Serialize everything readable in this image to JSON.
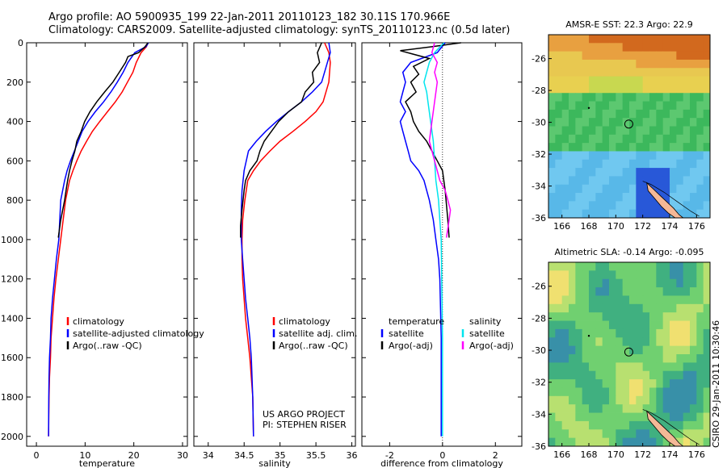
{
  "header": {
    "line1": "Argo profile: AO 5900935_199 22-Jan-2011 20110123_182 30.11S 170.966E",
    "line2": "Climatology: CARS2009. Satellite-adjusted climatology: synTS_20110123.nc (0.5d later)"
  },
  "stamp": "CSIRO 29-Jan-2011 10:30:46",
  "colors": {
    "climatology": "#ff0000",
    "satellite": "#0000ff",
    "argo": "#000000",
    "salinity_sat": "#00e5ee",
    "salinity_argo": "#ff00ff"
  },
  "chart_data": [
    {
      "type": "line",
      "id": "temperature",
      "xlabel": "temperature",
      "ylabel": "",
      "xlim": [
        -2,
        31
      ],
      "ylim": [
        2050,
        0
      ],
      "xticks": [
        0,
        10,
        20,
        30
      ],
      "yticks": [
        0,
        200,
        400,
        600,
        800,
        1000,
        1200,
        1400,
        1600,
        1800,
        2000
      ],
      "legend": {
        "position": "lower-right",
        "entries": [
          "climatology",
          "satellite-adjusted climatology",
          "Argo(..raw -QC)"
        ]
      },
      "series": [
        {
          "name": "climatology",
          "color": "red",
          "x": [
            22.9,
            22.6,
            21.5,
            20.5,
            19.8,
            18.7,
            17.6,
            16.2,
            14.6,
            13.0,
            11.5,
            10.3,
            9.2,
            8.3,
            7.5,
            6.8,
            6.0,
            5.0,
            4.5,
            4.0,
            3.6,
            3.3,
            3.0,
            2.9,
            2.7,
            2.6,
            2.55,
            2.5
          ],
          "y": [
            0,
            20,
            50,
            100,
            150,
            200,
            250,
            300,
            350,
            400,
            450,
            500,
            550,
            600,
            650,
            700,
            800,
            1000,
            1100,
            1200,
            1300,
            1400,
            1500,
            1600,
            1700,
            1800,
            1900,
            2000
          ]
        },
        {
          "name": "satellite-adjusted climatology",
          "color": "blue",
          "x": [
            23.0,
            22.5,
            20.2,
            18.8,
            17.8,
            16.6,
            15.3,
            13.8,
            12.1,
            10.6,
            9.4,
            8.6,
            7.8,
            7.0,
            6.3,
            5.8,
            5.0,
            4.6,
            4.1,
            3.7,
            3.3,
            3.0,
            2.9,
            2.7,
            2.6,
            2.55,
            2.5
          ],
          "y": [
            0,
            20,
            50,
            100,
            150,
            200,
            250,
            300,
            350,
            400,
            450,
            500,
            550,
            600,
            650,
            700,
            800,
            1000,
            1100,
            1200,
            1300,
            1400,
            1500,
            1600,
            1700,
            1800,
            2000
          ]
        },
        {
          "name": "Argo(..raw -QC)",
          "color": "black",
          "x": [
            22.9,
            22.3,
            21.0,
            18.8,
            18.3,
            17.0,
            15.7,
            14.0,
            12.4,
            11.0,
            9.9,
            9.2,
            8.3,
            7.9,
            7.3,
            6.8,
            6.4,
            6.1,
            5.8,
            5.4,
            5.0,
            4.5
          ],
          "y": [
            0,
            20,
            50,
            70,
            100,
            150,
            200,
            250,
            300,
            350,
            400,
            450,
            500,
            550,
            600,
            650,
            700,
            750,
            800,
            850,
            900,
            990
          ]
        }
      ]
    },
    {
      "type": "line",
      "id": "salinity",
      "xlabel": "salinity",
      "ylabel": "",
      "xlim": [
        33.8,
        36.05
      ],
      "ylim": [
        2050,
        0
      ],
      "xticks": [
        34,
        34.5,
        35,
        35.5,
        36
      ],
      "legend": {
        "position": "lower-right",
        "entries": [
          "climatology",
          "satellite adj. clim.",
          "Argo(..raw -QC)"
        ]
      },
      "annotation": [
        "US ARGO PROJECT",
        "PI: STEPHEN RISER"
      ],
      "series": [
        {
          "name": "climatology",
          "color": "red",
          "x": [
            35.62,
            35.68,
            35.7,
            35.68,
            35.6,
            35.5,
            35.35,
            35.18,
            35.0,
            34.86,
            34.73,
            34.63,
            34.55,
            34.51,
            34.48,
            34.47,
            34.47,
            34.48,
            34.5,
            34.52,
            34.55,
            34.58,
            34.6,
            34.62,
            34.63
          ],
          "y": [
            0,
            50,
            100,
            200,
            300,
            350,
            400,
            450,
            500,
            550,
            600,
            650,
            700,
            800,
            900,
            1000,
            1100,
            1200,
            1300,
            1400,
            1500,
            1600,
            1700,
            1800,
            2000
          ]
        },
        {
          "name": "satellite adj. clim.",
          "color": "blue",
          "x": [
            35.68,
            35.7,
            35.66,
            35.58,
            35.45,
            35.3,
            35.12,
            34.95,
            34.8,
            34.67,
            34.56,
            34.5,
            34.47,
            34.46,
            34.46,
            34.48,
            34.5,
            34.52,
            34.55,
            34.58,
            34.6,
            34.62,
            34.63
          ],
          "y": [
            0,
            50,
            100,
            200,
            250,
            300,
            350,
            400,
            450,
            500,
            550,
            650,
            750,
            850,
            1000,
            1100,
            1200,
            1300,
            1400,
            1500,
            1600,
            1800,
            2000
          ]
        },
        {
          "name": "Argo(..raw -QC)",
          "color": "black",
          "x": [
            35.58,
            35.52,
            35.55,
            35.45,
            35.47,
            35.35,
            35.3,
            35.12,
            34.98,
            34.88,
            34.78,
            34.72,
            34.68,
            34.58,
            34.52,
            34.5,
            34.47,
            34.45,
            34.45
          ],
          "y": [
            0,
            50,
            100,
            150,
            200,
            250,
            300,
            350,
            400,
            450,
            500,
            550,
            600,
            650,
            700,
            750,
            850,
            930,
            990
          ]
        }
      ]
    },
    {
      "type": "line",
      "id": "difference",
      "xlabel": "difference from climatology",
      "ylabel": "",
      "xlim": [
        -3.05,
        3.0
      ],
      "ylim": [
        2050,
        0
      ],
      "xticks": [
        -2,
        0,
        2
      ],
      "legend": {
        "position": "lower-right",
        "groups": [
          {
            "title": "temperature",
            "entries": [
              "satellite",
              "Argo(-adj)"
            ]
          },
          {
            "title": "salinity",
            "entries": [
              "satellite",
              "Argo(-adj)"
            ]
          }
        ]
      },
      "series": [
        {
          "name": "temperature satellite",
          "color": "blue",
          "x": [
            0.1,
            -0.2,
            -1.2,
            -1.5,
            -1.4,
            -1.5,
            -1.6,
            -1.4,
            -1.6,
            -1.5,
            -1.4,
            -1.3,
            -1.2,
            -0.9,
            -0.7,
            -0.6,
            -0.5,
            -0.35,
            -0.25,
            -0.15,
            -0.1,
            -0.05,
            -0.05
          ],
          "y": [
            0,
            50,
            100,
            150,
            200,
            250,
            300,
            350,
            400,
            450,
            500,
            550,
            600,
            650,
            700,
            750,
            800,
            900,
            1000,
            1100,
            1200,
            1500,
            2000
          ]
        },
        {
          "name": "temperature Argo(-adj)",
          "color": "black",
          "x": [
            0.7,
            -0.4,
            -1.6,
            -0.5,
            -1.1,
            -0.9,
            -1.2,
            -1.0,
            -1.4,
            -1.2,
            -1.1,
            -0.9,
            -0.6,
            -0.4,
            -0.2,
            0.0,
            0.1,
            0.2,
            0.25
          ],
          "y": [
            0,
            20,
            40,
            80,
            120,
            160,
            200,
            250,
            300,
            350,
            400,
            450,
            500,
            550,
            600,
            650,
            750,
            900,
            990
          ]
        },
        {
          "name": "salinity satellite",
          "color": "cyan",
          "x": [
            0.05,
            -0.3,
            -0.5,
            -0.6,
            -0.7,
            -0.6,
            -0.55,
            -0.45,
            -0.35,
            -0.3,
            -0.25,
            -0.15,
            -0.1,
            -0.05,
            0.0,
            0.0
          ],
          "y": [
            0,
            50,
            100,
            150,
            200,
            250,
            300,
            400,
            500,
            600,
            700,
            800,
            900,
            1000,
            1500,
            2000
          ]
        },
        {
          "name": "salinity Argo(-adj)",
          "color": "magenta",
          "x": [
            -0.3,
            -0.4,
            -0.2,
            -0.3,
            -0.2,
            -0.3,
            -0.4,
            -0.5,
            -0.3,
            -0.1,
            0.1,
            0.2,
            0.3,
            0.25,
            0.15
          ],
          "y": [
            0,
            50,
            100,
            150,
            200,
            300,
            400,
            500,
            600,
            700,
            750,
            800,
            850,
            900,
            990
          ]
        }
      ]
    },
    {
      "type": "heatmap",
      "id": "sst-map",
      "title": "AMSR-E SST: 22.3 Argo: 22.9",
      "xlim": [
        165,
        177
      ],
      "ylim": [
        -36,
        -24.5
      ],
      "xticks": [
        166,
        168,
        170,
        172,
        174,
        176
      ],
      "yticks": [
        -26,
        -28,
        -30,
        -32,
        -34,
        -36
      ],
      "marker": {
        "lon": 170.966,
        "lat": -30.11
      }
    },
    {
      "type": "heatmap",
      "id": "sla-map",
      "title": "Altimetric SLA: -0.14 Argo: -0.095",
      "xlim": [
        165,
        177
      ],
      "ylim": [
        -36,
        -24.5
      ],
      "xticks": [
        166,
        168,
        170,
        172,
        174,
        176
      ],
      "yticks": [
        -26,
        -28,
        -30,
        -32,
        -34,
        -36
      ],
      "marker": {
        "lon": 170.966,
        "lat": -30.11
      }
    }
  ]
}
